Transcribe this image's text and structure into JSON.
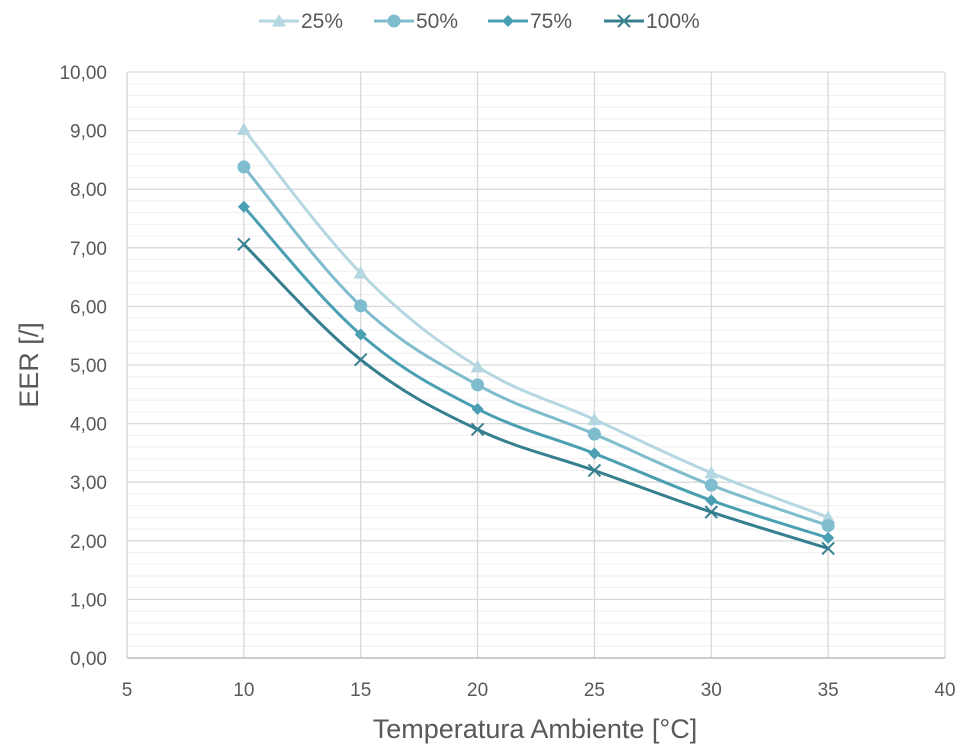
{
  "chart_data": {
    "type": "line",
    "xlabel": "Temperatura Ambiente [°C]",
    "ylabel": "EER [/]",
    "xlim": [
      5,
      40
    ],
    "ylim": [
      0,
      10
    ],
    "x_ticks": [
      "5",
      "10",
      "15",
      "20",
      "25",
      "30",
      "35",
      "40"
    ],
    "y_ticks": [
      "0,00",
      "1,00",
      "2,00",
      "3,00",
      "4,00",
      "5,00",
      "6,00",
      "7,00",
      "8,00",
      "9,00",
      "10,00"
    ],
    "grid": true,
    "legend_position": "top",
    "x": [
      10,
      15,
      20,
      25,
      30,
      35
    ],
    "series": [
      {
        "name": "25%",
        "color": "#b4d7e2",
        "marker": "triangle",
        "values": [
          9.02,
          6.57,
          4.97,
          4.07,
          3.16,
          2.4
        ]
      },
      {
        "name": "50%",
        "color": "#7fbccd",
        "marker": "circle",
        "values": [
          8.38,
          6.01,
          4.66,
          3.82,
          2.95,
          2.26
        ]
      },
      {
        "name": "75%",
        "color": "#4a9fb3",
        "marker": "diamond",
        "values": [
          7.7,
          5.52,
          4.25,
          3.49,
          2.69,
          2.05
        ]
      },
      {
        "name": "100%",
        "color": "#357f8f",
        "marker": "x",
        "values": [
          7.06,
          5.09,
          3.9,
          3.2,
          2.49,
          1.87
        ]
      }
    ]
  }
}
